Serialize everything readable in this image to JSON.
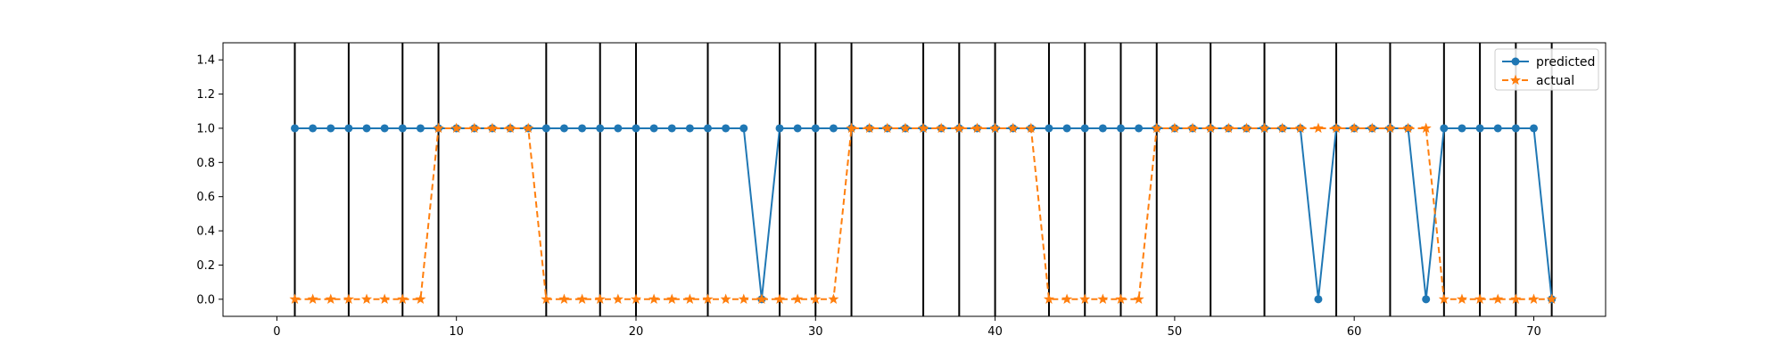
{
  "chart_data": {
    "type": "line",
    "title": "",
    "xlabel": "",
    "ylabel": "",
    "xlim": [
      -3,
      74
    ],
    "ylim": [
      -0.1,
      1.5
    ],
    "x_ticks": [
      0,
      10,
      20,
      30,
      40,
      50,
      60,
      70
    ],
    "y_ticks": [
      0.0,
      0.2,
      0.4,
      0.6,
      0.8,
      1.0,
      1.2,
      1.4
    ],
    "x_tick_labels": [
      "0",
      "10",
      "20",
      "30",
      "40",
      "50",
      "60",
      "70"
    ],
    "y_tick_labels": [
      "0.0",
      "0.2",
      "0.4",
      "0.6",
      "0.8",
      "1.0",
      "1.2",
      "1.4"
    ],
    "grid": false,
    "legend_position": "top-right",
    "vertical_lines": [
      1,
      4,
      7,
      9,
      15,
      18,
      20,
      24,
      28,
      30,
      32,
      36,
      38,
      40,
      43,
      45,
      47,
      49,
      52,
      55,
      59,
      62,
      65,
      67,
      69,
      71
    ],
    "x": [
      1,
      2,
      3,
      4,
      5,
      6,
      7,
      8,
      9,
      10,
      11,
      12,
      13,
      14,
      15,
      16,
      17,
      18,
      19,
      20,
      21,
      22,
      23,
      24,
      25,
      26,
      27,
      28,
      29,
      30,
      31,
      32,
      33,
      34,
      35,
      36,
      37,
      38,
      39,
      40,
      41,
      42,
      43,
      44,
      45,
      46,
      47,
      48,
      49,
      50,
      51,
      52,
      53,
      54,
      55,
      56,
      57,
      58,
      59,
      60,
      61,
      62,
      63,
      64,
      65,
      66,
      67,
      68,
      69,
      70,
      71
    ],
    "series": [
      {
        "name": "predicted",
        "color": "#1f77b4",
        "marker": "circle",
        "linestyle": "solid",
        "values": [
          1,
          1,
          1,
          1,
          1,
          1,
          1,
          1,
          1,
          1,
          1,
          1,
          1,
          1,
          1,
          1,
          1,
          1,
          1,
          1,
          1,
          1,
          1,
          1,
          1,
          1,
          0,
          1,
          1,
          1,
          1,
          1,
          1,
          1,
          1,
          1,
          1,
          1,
          1,
          1,
          1,
          1,
          1,
          1,
          1,
          1,
          1,
          1,
          1,
          1,
          1,
          1,
          1,
          1,
          1,
          1,
          1,
          0,
          1,
          1,
          1,
          1,
          1,
          0,
          1,
          1,
          1,
          1,
          1,
          1,
          0
        ]
      },
      {
        "name": "actual",
        "color": "#ff7f0e",
        "marker": "star",
        "linestyle": "dashed",
        "values": [
          0,
          0,
          0,
          0,
          0,
          0,
          0,
          0,
          1,
          1,
          1,
          1,
          1,
          1,
          0,
          0,
          0,
          0,
          0,
          0,
          0,
          0,
          0,
          0,
          0,
          0,
          0,
          0,
          0,
          0,
          0,
          1,
          1,
          1,
          1,
          1,
          1,
          1,
          1,
          1,
          1,
          1,
          0,
          0,
          0,
          0,
          0,
          0,
          1,
          1,
          1,
          1,
          1,
          1,
          1,
          1,
          1,
          1,
          1,
          1,
          1,
          1,
          1,
          1,
          0,
          0,
          0,
          0,
          0,
          0,
          0
        ]
      }
    ]
  }
}
